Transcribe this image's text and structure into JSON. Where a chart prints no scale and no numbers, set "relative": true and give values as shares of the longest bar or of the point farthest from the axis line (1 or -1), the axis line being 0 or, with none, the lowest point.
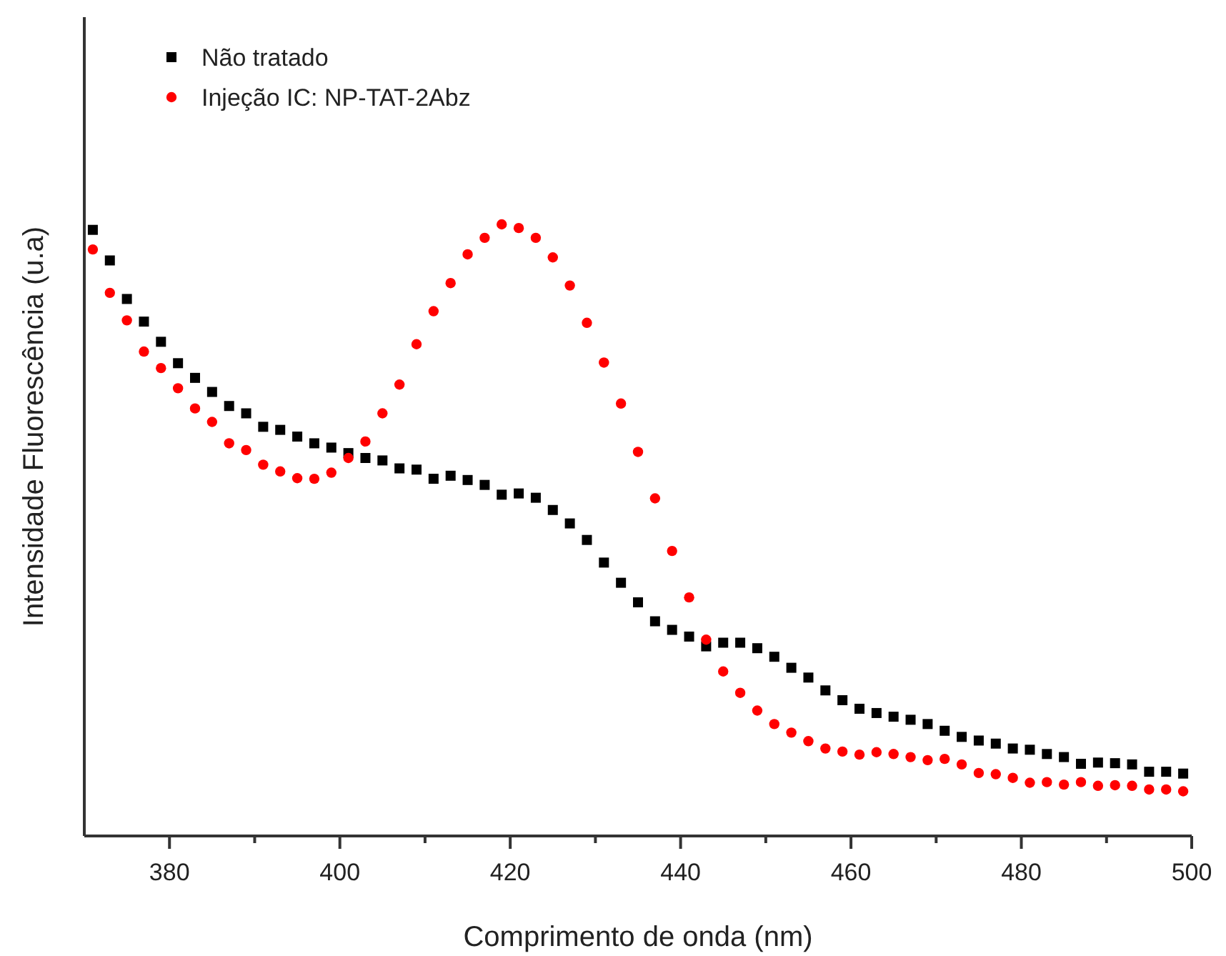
{
  "chart_data": {
    "type": "scatter",
    "relative": true,
    "xlabel": "Comprimento de onda (nm)",
    "ylabel": "Intensidade Fluorescência (u.a)",
    "legend": "top left",
    "xlim": [
      370,
      500
    ],
    "xticks": [
      380,
      {
        "value": 390,
        "label": null
      },
      400,
      {
        "value": 410,
        "label": null
      },
      420,
      {
        "value": 430,
        "label": null
      },
      440,
      {
        "value": 450,
        "label": null
      },
      460,
      {
        "value": 470,
        "label": null
      },
      480,
      {
        "value": 490,
        "label": null
      },
      500
    ],
    "x": [
      371,
      373,
      375,
      377,
      379,
      381,
      383,
      385,
      387,
      389,
      391,
      393,
      395,
      397,
      399,
      401,
      403,
      405,
      407,
      409,
      411,
      413,
      415,
      417,
      419,
      421,
      423,
      425,
      427,
      429,
      431,
      433,
      435,
      437,
      439,
      441,
      443,
      445,
      447,
      449,
      451,
      453,
      455,
      457,
      459,
      461,
      463,
      465,
      467,
      469,
      471,
      473,
      475,
      477,
      479,
      481,
      483,
      485,
      487,
      489,
      491,
      493,
      495,
      497,
      499
    ],
    "series": [
      {
        "name": "Não tratado",
        "color": "#000000",
        "marker": "square",
        "values": [
          0.991,
          0.941,
          0.878,
          0.841,
          0.808,
          0.773,
          0.749,
          0.726,
          0.703,
          0.691,
          0.669,
          0.664,
          0.653,
          0.642,
          0.635,
          0.626,
          0.618,
          0.614,
          0.601,
          0.599,
          0.584,
          0.589,
          0.582,
          0.574,
          0.558,
          0.56,
          0.553,
          0.533,
          0.511,
          0.484,
          0.447,
          0.414,
          0.382,
          0.351,
          0.337,
          0.326,
          0.31,
          0.316,
          0.316,
          0.307,
          0.293,
          0.275,
          0.259,
          0.238,
          0.222,
          0.208,
          0.201,
          0.195,
          0.19,
          0.183,
          0.172,
          0.162,
          0.156,
          0.151,
          0.143,
          0.141,
          0.134,
          0.129,
          0.118,
          0.12,
          0.119,
          0.117,
          0.105,
          0.105,
          0.102
        ]
      },
      {
        "name": "Injeção IC: NP-TAT-2Abz",
        "color": "#ff0000",
        "marker": "circle",
        "values": [
          0.959,
          0.888,
          0.843,
          0.792,
          0.765,
          0.732,
          0.699,
          0.677,
          0.642,
          0.631,
          0.607,
          0.596,
          0.585,
          0.584,
          0.594,
          0.618,
          0.645,
          0.691,
          0.738,
          0.804,
          0.858,
          0.904,
          0.951,
          0.978,
          1.0,
          0.994,
          0.978,
          0.946,
          0.9,
          0.839,
          0.774,
          0.707,
          0.628,
          0.552,
          0.466,
          0.39,
          0.321,
          0.269,
          0.234,
          0.205,
          0.183,
          0.169,
          0.155,
          0.143,
          0.138,
          0.133,
          0.137,
          0.134,
          0.129,
          0.124,
          0.126,
          0.117,
          0.103,
          0.101,
          0.095,
          0.087,
          0.088,
          0.084,
          0.088,
          0.082,
          0.083,
          0.082,
          0.076,
          0.076,
          0.073
        ]
      }
    ]
  }
}
